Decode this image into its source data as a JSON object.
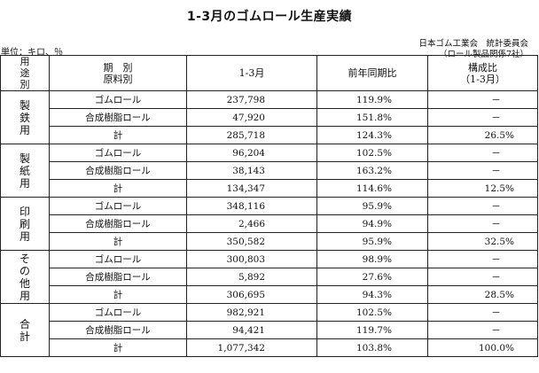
{
  "title": "1-3月のゴムロール生産実績",
  "source_line1": "日本ゴム工業会　統計委員会",
  "source_line2": "（ロール製品関係7社）",
  "unit": "単位：キロ、％",
  "headers": {
    "usage": [
      "用",
      "途",
      "別"
    ],
    "period_line1": "期　別",
    "period_line2": "原料別",
    "qty": "1-3月",
    "yoy": "前年同期比",
    "share_line1": "構成比",
    "share_line2": "（1-3月）"
  },
  "groups": [
    {
      "name": [
        "製",
        "鉄",
        "用"
      ],
      "rows": [
        {
          "item": "ゴムロール",
          "qty": "237,798",
          "yoy": "119.9%",
          "share": "－"
        },
        {
          "item": "合成樹脂ロール",
          "qty": "47,920",
          "yoy": "151.8%",
          "share": "－"
        },
        {
          "item": "計",
          "qty": "285,718",
          "yoy": "124.3%",
          "share": "26.5%"
        }
      ]
    },
    {
      "name": [
        "製",
        "紙",
        "用"
      ],
      "rows": [
        {
          "item": "ゴムロール",
          "qty": "96,204",
          "yoy": "102.5%",
          "share": "－"
        },
        {
          "item": "合成樹脂ロール",
          "qty": "38,143",
          "yoy": "163.2%",
          "share": "－"
        },
        {
          "item": "計",
          "qty": "134,347",
          "yoy": "114.6%",
          "share": "12.5%"
        }
      ]
    },
    {
      "name": [
        "印",
        "刷",
        "用"
      ],
      "rows": [
        {
          "item": "ゴムロール",
          "qty": "348,116",
          "yoy": "95.9%",
          "share": "－"
        },
        {
          "item": "合成樹脂ロール",
          "qty": "2,466",
          "yoy": "94.9%",
          "share": "－"
        },
        {
          "item": "計",
          "qty": "350,582",
          "yoy": "95.9%",
          "share": "32.5%"
        }
      ]
    },
    {
      "name": [
        "そ",
        "の",
        "他",
        "用"
      ],
      "rows": [
        {
          "item": "ゴムロール",
          "qty": "300,803",
          "yoy": "98.9%",
          "share": "－"
        },
        {
          "item": "合成樹脂ロール",
          "qty": "5,892",
          "yoy": "27.6%",
          "share": "－"
        },
        {
          "item": "計",
          "qty": "306,695",
          "yoy": "94.3%",
          "share": "28.5%"
        }
      ]
    },
    {
      "name": [
        "合",
        "計"
      ],
      "rows": [
        {
          "item": "ゴムロール",
          "qty": "982,921",
          "yoy": "102.5%",
          "share": "－"
        },
        {
          "item": "合成樹脂ロール",
          "qty": "94,421",
          "yoy": "119.7%",
          "share": "－"
        },
        {
          "item": "計",
          "qty": "1,077,342",
          "yoy": "103.8%",
          "share": "100.0%"
        }
      ]
    }
  ]
}
